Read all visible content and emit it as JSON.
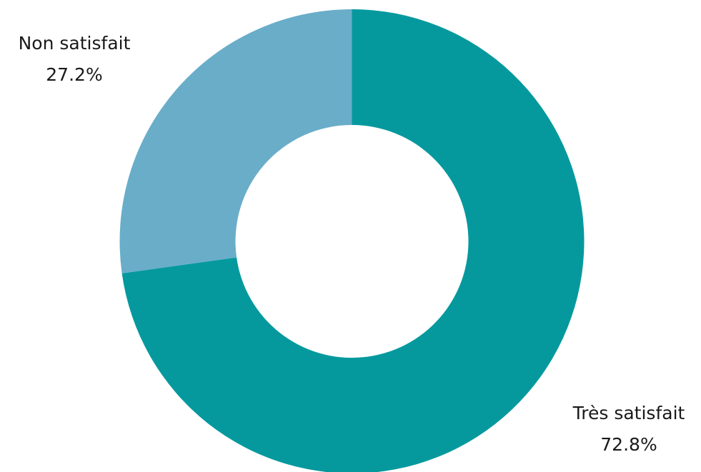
{
  "chart_data": {
    "type": "pie",
    "variant": "donut",
    "title": "",
    "slices": [
      {
        "label": "Très satisfait",
        "value": 72.8,
        "value_label": "72.8%",
        "color": "#05999e"
      },
      {
        "label": "Non satisfait",
        "value": 27.2,
        "value_label": "27.2%",
        "color": "#69adc9"
      }
    ],
    "start_angle_deg": 0,
    "direction": "clockwise",
    "legend": "none"
  }
}
